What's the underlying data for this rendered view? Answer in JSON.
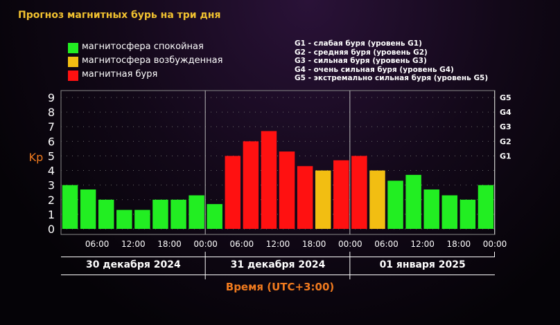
{
  "title": "Прогноз магнитных бурь на три дня",
  "legend": [
    {
      "label": "магнитосфера спокойная",
      "color": "#22ee22"
    },
    {
      "label": "магнитосфера возбужденная",
      "color": "#f2be12"
    },
    {
      "label": "магнитная буря",
      "color": "#ff1111"
    }
  ],
  "g_scale": [
    "G1 - слабая буря (уровень G1)",
    "G2 - средняя буря (уровень G2)",
    "G3 - сильная буря (уровень G3)",
    "G4 - очень сильная буря (уровень G4)",
    "G5 - экстремально сильная буря (уровень G5)"
  ],
  "chart_data": {
    "type": "bar",
    "ylabel": "Kp",
    "xlabel": "Время (UTC+3:00)",
    "ylim": [
      0,
      9
    ],
    "y_ticks": [
      "0",
      "1",
      "2",
      "3",
      "4",
      "5",
      "6",
      "7",
      "8",
      "9"
    ],
    "right_ticks": [
      {
        "label": "G1",
        "kp": 5
      },
      {
        "label": "G2",
        "kp": 6
      },
      {
        "label": "G3",
        "kp": 7
      },
      {
        "label": "G4",
        "kp": 8
      },
      {
        "label": "G5",
        "kp": 9
      }
    ],
    "x_tick_labels": [
      "06:00",
      "12:00",
      "18:00",
      "00:00",
      "06:00",
      "12:00",
      "18:00",
      "00:00",
      "06:00",
      "12:00",
      "18:00",
      "00:00"
    ],
    "days": [
      "30 декабря 2024",
      "31 декабря 2024",
      "01 января 2025"
    ],
    "grid": true,
    "values": [
      3.0,
      2.7,
      2.0,
      1.3,
      1.3,
      2.0,
      2.0,
      2.3,
      1.7,
      5.0,
      6.0,
      6.7,
      5.3,
      4.3,
      4.0,
      4.7,
      5.0,
      4.0,
      3.3,
      3.7,
      2.7,
      2.3,
      2.0,
      3.0
    ],
    "levels": [
      "quiet",
      "quiet",
      "quiet",
      "quiet",
      "quiet",
      "quiet",
      "quiet",
      "quiet",
      "quiet",
      "storm",
      "storm",
      "storm",
      "storm",
      "storm",
      "active",
      "storm",
      "storm",
      "active",
      "quiet",
      "quiet",
      "quiet",
      "quiet",
      "quiet",
      "quiet"
    ]
  },
  "colors": {
    "quiet": "#22ee22",
    "active": "#f2be12",
    "storm": "#ff1111",
    "title": "#f2c230",
    "axis_label": "#f07a1e"
  }
}
